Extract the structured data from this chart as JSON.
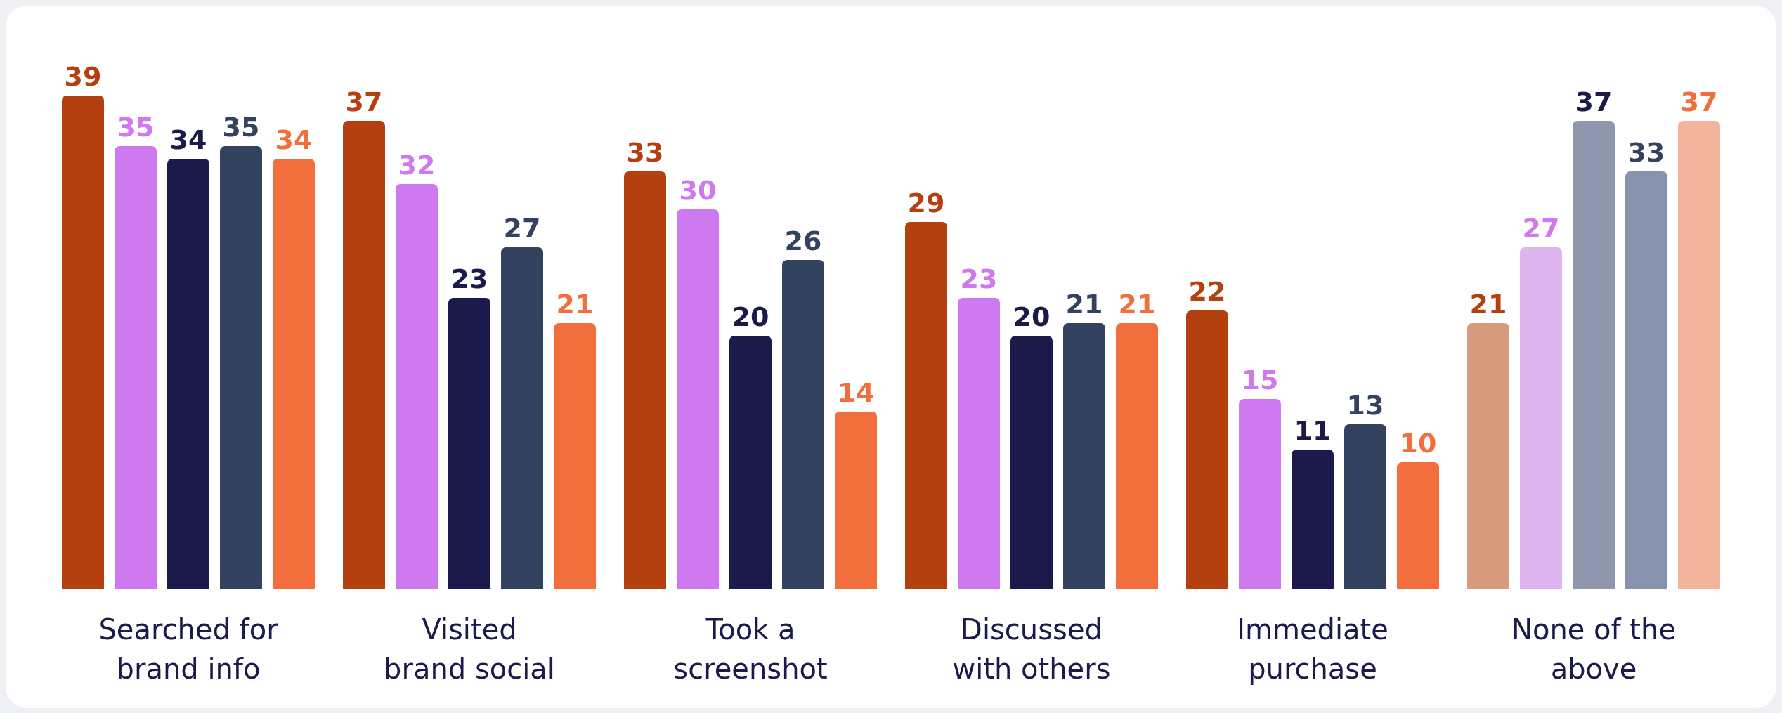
{
  "chart_data": {
    "type": "bar",
    "categories": [
      "Searched for\nbrand info",
      "Visited\nbrand social",
      "Took a\nscreenshot",
      "Discussed\nwith others",
      "Immediate\npurchase",
      "None of the\nabove"
    ],
    "series": [
      {
        "color": "#b5400f",
        "colors": [
          "#b5400f",
          "#b5400f",
          "#b5400f",
          "#b5400f",
          "#b5400f",
          "#d69b7c"
        ],
        "values": [
          39,
          37,
          33,
          29,
          22,
          21
        ]
      },
      {
        "color": "#cf79f0",
        "colors": [
          "#cf79f0",
          "#cf79f0",
          "#cf79f0",
          "#cf79f0",
          "#cf79f0",
          "#dfb5f0"
        ],
        "values": [
          35,
          32,
          30,
          23,
          15,
          27
        ]
      },
      {
        "color": "#1b1a4b",
        "colors": [
          "#1b1a4b",
          "#1b1a4b",
          "#1b1a4b",
          "#1b1a4b",
          "#1b1a4b",
          "#8f97ae"
        ],
        "values": [
          34,
          23,
          20,
          20,
          11,
          37
        ]
      },
      {
        "color": "#33425f",
        "colors": [
          "#33425f",
          "#33425f",
          "#33425f",
          "#33425f",
          "#33425f",
          "#8793ad"
        ],
        "values": [
          35,
          27,
          26,
          21,
          13,
          33
        ]
      },
      {
        "color": "#f26f3d",
        "colors": [
          "#f26f3d",
          "#f26f3d",
          "#f26f3d",
          "#f26f3d",
          "#f26f3d",
          "#f2b49c"
        ],
        "values": [
          34,
          21,
          14,
          21,
          10,
          37
        ]
      }
    ],
    "data_labels": true
  }
}
